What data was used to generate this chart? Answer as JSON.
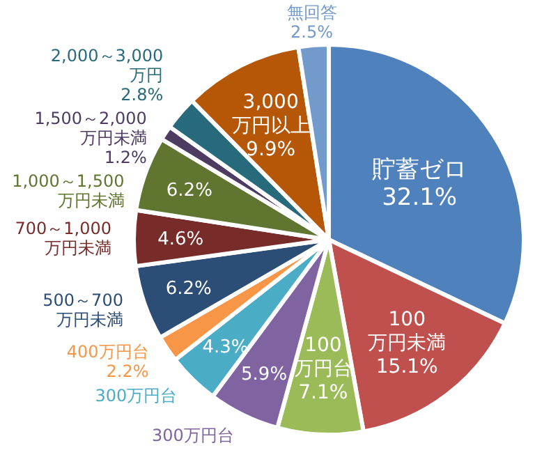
{
  "chart_data": {
    "type": "pie",
    "categories": [
      "貯蓄ゼロ",
      "100万円未満",
      "100万円台",
      "300万円台",
      "300万円台",
      "400万円台",
      "500～700万円未満",
      "700～1,000万円未満",
      "1,000～1,500万円未満",
      "1,500～2,000万円未満",
      "2,000～3,000万円",
      "3,000万円以上",
      "無回答"
    ],
    "values": [
      32.1,
      15.1,
      7.1,
      5.9,
      4.3,
      2.2,
      6.2,
      4.6,
      6.2,
      1.2,
      2.8,
      9.9,
      2.5
    ],
    "value_labels": [
      "32.1%",
      "15.1%",
      "7.1%",
      "5.9%",
      "4.3%",
      "2.2%",
      "6.2%",
      "4.6%",
      "6.2%",
      "1.2%",
      "2.8%",
      "9.9%",
      "2.5%"
    ],
    "colors": [
      "#4f81bd",
      "#c0504d",
      "#9bbb59",
      "#8064a2",
      "#4bacc6",
      "#f79646",
      "#2c4d75",
      "#772c2a",
      "#5f7530",
      "#4d3b62",
      "#276a7c",
      "#b65708",
      "#729aca"
    ]
  }
}
